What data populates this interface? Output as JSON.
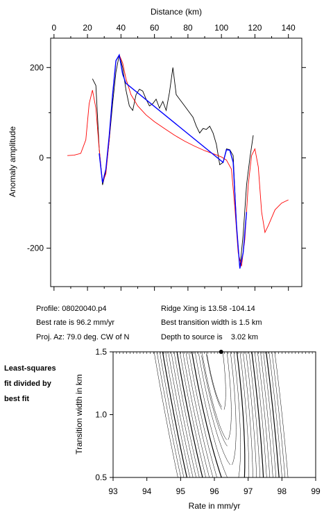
{
  "chart_data": [
    {
      "type": "line",
      "title": "",
      "xlabel": "Distance (km)",
      "ylabel": "Anomaly amplitude",
      "xlim": [
        -2,
        148
      ],
      "ylim": [
        -285,
        265
      ],
      "x_ticks": [
        "0",
        "20",
        "40",
        "60",
        "80",
        "100",
        "120",
        "140"
      ],
      "y_ticks": [
        "200",
        "0",
        "-200"
      ],
      "series": [
        {
          "color": "#000000",
          "points": [
            [
              23,
              175
            ],
            [
              25,
              160
            ],
            [
              27,
              20
            ],
            [
              29,
              -60
            ],
            [
              31,
              -30
            ],
            [
              33,
              40
            ],
            [
              35,
              120
            ],
            [
              37,
              190
            ],
            [
              39,
              228
            ],
            [
              41,
              200
            ],
            [
              43,
              150
            ],
            [
              45,
              115
            ],
            [
              47,
              105
            ],
            [
              49,
              140
            ],
            [
              51,
              152
            ],
            [
              53,
              148
            ],
            [
              55,
              130
            ],
            [
              57,
              115
            ],
            [
              59,
              120
            ],
            [
              61,
              130
            ],
            [
              63,
              110
            ],
            [
              65,
              125
            ],
            [
              67,
              105
            ],
            [
              69,
              145
            ],
            [
              71,
              200
            ],
            [
              73,
              140
            ],
            [
              75,
              130
            ],
            [
              77,
              120
            ],
            [
              79,
              110
            ],
            [
              81,
              100
            ],
            [
              83,
              90
            ],
            [
              85,
              70
            ],
            [
              87,
              55
            ],
            [
              89,
              65
            ],
            [
              91,
              63
            ],
            [
              93,
              70
            ],
            [
              95,
              55
            ],
            [
              97,
              30
            ],
            [
              99,
              -15
            ],
            [
              101,
              -10
            ],
            [
              103,
              20
            ],
            [
              105,
              18
            ],
            [
              107,
              5
            ],
            [
              109,
              -150
            ],
            [
              111,
              -245
            ],
            [
              113,
              -170
            ],
            [
              115,
              -60
            ],
            [
              117,
              0
            ],
            [
              119,
              50
            ]
          ]
        },
        {
          "color": "#ff0000",
          "points": [
            [
              8,
              5
            ],
            [
              12,
              6
            ],
            [
              16,
              10
            ],
            [
              19,
              40
            ],
            [
              21,
              120
            ],
            [
              23,
              150
            ],
            [
              25,
              110
            ],
            [
              27,
              20
            ],
            [
              29,
              -55
            ],
            [
              31,
              -35
            ],
            [
              33,
              40
            ],
            [
              35,
              140
            ],
            [
              37,
              215
            ],
            [
              39,
              228
            ],
            [
              41,
              210
            ],
            [
              43,
              175
            ],
            [
              46,
              140
            ],
            [
              50,
              115
            ],
            [
              55,
              95
            ],
            [
              60,
              80
            ],
            [
              66,
              65
            ],
            [
              72,
              50
            ],
            [
              78,
              37
            ],
            [
              84,
              26
            ],
            [
              90,
              16
            ],
            [
              96,
              8
            ],
            [
              100,
              2
            ],
            [
              103,
              -5
            ],
            [
              106,
              -25
            ],
            [
              108,
              -110
            ],
            [
              110,
              -210
            ],
            [
              112,
              -240
            ],
            [
              114,
              -180
            ],
            [
              116,
              -60
            ],
            [
              118,
              5
            ],
            [
              120,
              20
            ],
            [
              122,
              -20
            ],
            [
              124,
              -120
            ],
            [
              126,
              -165
            ],
            [
              128,
              -150
            ],
            [
              132,
              -115
            ],
            [
              136,
              -100
            ],
            [
              140,
              -93
            ]
          ]
        },
        {
          "color": "#0000ff",
          "points": [
            [
              27,
              10
            ],
            [
              29,
              -55
            ],
            [
              31,
              -25
            ],
            [
              33,
              50
            ],
            [
              35,
              140
            ],
            [
              37,
              215
            ],
            [
              39,
              228
            ],
            [
              41,
              185
            ],
            [
              43,
              165
            ],
            [
              101,
              -10
            ],
            [
              103,
              18
            ],
            [
              105,
              17
            ],
            [
              107,
              -10
            ],
            [
              109,
              -150
            ],
            [
              111,
              -245
            ],
            [
              113,
              -210
            ],
            [
              115,
              -120
            ]
          ]
        }
      ]
    },
    {
      "type": "contour",
      "title": "",
      "xlabel": "Rate in mm/yr",
      "ylabel": "Transition width in km",
      "xlim": [
        93,
        99
      ],
      "ylim": [
        0.5,
        1.5
      ],
      "x_ticks": [
        "93",
        "94",
        "95",
        "96",
        "97",
        "98",
        "99"
      ],
      "y_ticks": [
        "0.5",
        "1.0",
        "1.5"
      ],
      "best_fit_point": [
        96.2,
        1.5
      ],
      "contour_levels_approx": [
        1.1,
        1.2,
        1.3,
        1.4,
        1.5
      ]
    }
  ],
  "info": {
    "profile": "Profile: 08020040.p4",
    "best_rate": "Best rate is 96.2 mm/yr",
    "proj_az": "Proj. Az: 79.0 deg. CW of N",
    "ridge_xing": "Ridge Xing is 13.58 -104.14",
    "transition": "Best transition width is 1.5 km",
    "depth": "Depth to source is    3.02 km"
  },
  "side_note": [
    "Least-squares",
    "fit divided by",
    "best fit"
  ]
}
